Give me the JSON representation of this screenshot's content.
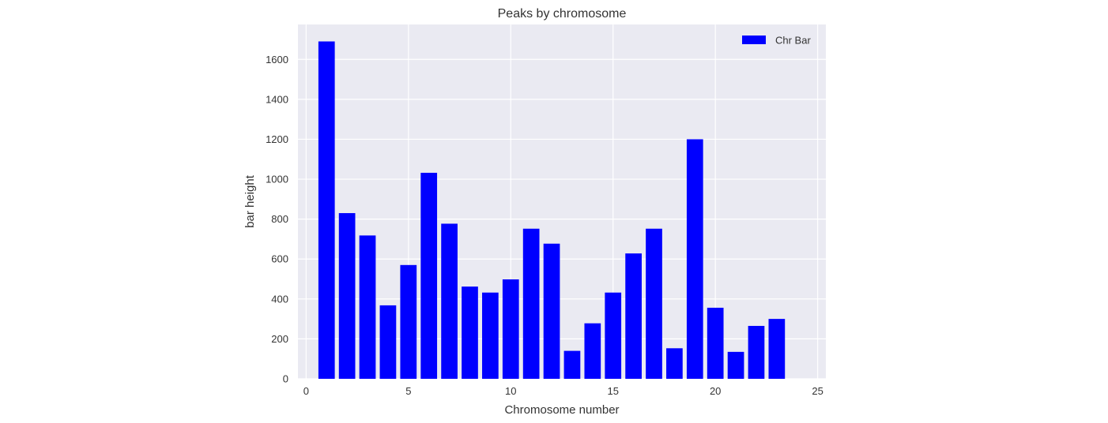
{
  "chart_data": {
    "type": "bar",
    "title": "Peaks by chromosome",
    "xlabel": "Chromosome number",
    "ylabel": "bar height",
    "x": [
      1,
      2,
      3,
      4,
      5,
      6,
      7,
      8,
      9,
      10,
      11,
      12,
      13,
      14,
      15,
      16,
      17,
      18,
      19,
      20,
      21,
      22,
      23
    ],
    "values": [
      1690,
      830,
      718,
      368,
      570,
      1032,
      777,
      462,
      432,
      498,
      752,
      677,
      140,
      278,
      432,
      628,
      752,
      153,
      1200,
      356,
      135,
      265,
      300
    ],
    "series": [
      {
        "name": "Chr Bar",
        "color": "#0000ff"
      }
    ],
    "xlim": [
      -0.4,
      25.4
    ],
    "ylim": [
      0,
      1775
    ],
    "xticks": [
      "0",
      "5",
      "10",
      "15",
      "20",
      "25"
    ],
    "yticks": [
      "0",
      "200",
      "400",
      "600",
      "800",
      "1000",
      "1200",
      "1400",
      "1600"
    ],
    "grid": true,
    "legend_position": "top-right",
    "background_color": "#eaeaf2",
    "grid_color": "#ffffff"
  }
}
